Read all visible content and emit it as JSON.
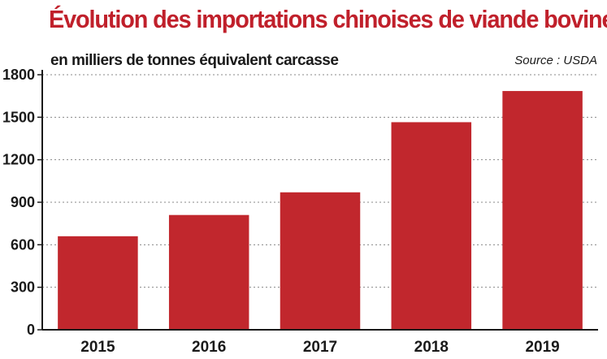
{
  "header": {
    "title": "Évolution des importations chinoises de viande bovine",
    "subtitle": "en milliers de tonnes équivalent carcasse",
    "source": "Source : USDA"
  },
  "colors": {
    "bar": "#c1272d",
    "title": "#c0202b",
    "grid": "#888888",
    "axis": "#1a1a1a"
  },
  "chart_data": {
    "type": "bar",
    "categories": [
      "2015",
      "2016",
      "2017",
      "2018",
      "2019"
    ],
    "values": [
      660,
      810,
      970,
      1465,
      1685
    ],
    "title": "Évolution des importations chinoises de viande bovine",
    "ylabel": "en milliers de tonnes équivalent carcasse",
    "ylim": [
      0,
      1800
    ],
    "yticks": [
      0,
      300,
      600,
      900,
      1200,
      1500,
      1800
    ],
    "grid": true,
    "legend": "none"
  }
}
